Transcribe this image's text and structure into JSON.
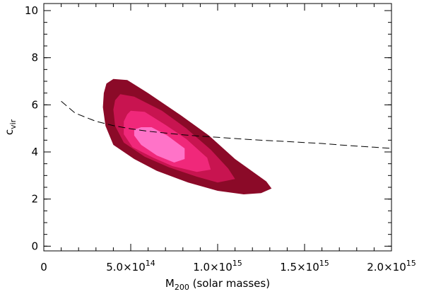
{
  "chart_data": {
    "type": "line",
    "xlabel": {
      "main": "M",
      "sub": "200",
      "rest": " (solar masses)"
    },
    "ylabel": {
      "main": "c",
      "sub": "vir"
    },
    "xlim": [
      0,
      2000000000000000.0
    ],
    "ylim": [
      -0.2,
      10.3
    ],
    "x_ticks": [
      {
        "value": 0,
        "mantissa": "0",
        "exp": ""
      },
      {
        "value": 500000000000000.0,
        "mantissa": "5.0×10",
        "exp": "14"
      },
      {
        "value": 1000000000000000.0,
        "mantissa": "1.0×10",
        "exp": "15"
      },
      {
        "value": 1500000000000000.0,
        "mantissa": "1.5×10",
        "exp": "15"
      },
      {
        "value": 2000000000000000.0,
        "mantissa": "2.0×10",
        "exp": "15"
      }
    ],
    "y_ticks": [
      0,
      2,
      4,
      6,
      8,
      10
    ],
    "series": [
      {
        "style": "dashed",
        "color": "#000000",
        "x": [
          100000000000000.0,
          180000000000000.0,
          300000000000000.0,
          400000000000000.0,
          500000000000000.0,
          600000000000000.0,
          700000000000000.0,
          800000000000000.0,
          900000000000000.0,
          1000000000000000.0,
          1100000000000000.0,
          1200000000000000.0,
          1300000000000000.0,
          1400000000000000.0,
          1500000000000000.0,
          1600000000000000.0,
          1700000000000000.0,
          1800000000000000.0,
          1900000000000000.0,
          2000000000000000.0
        ],
        "y": [
          6.15,
          5.65,
          5.3,
          5.12,
          4.98,
          4.88,
          4.8,
          4.73,
          4.67,
          4.62,
          4.57,
          4.52,
          4.48,
          4.44,
          4.4,
          4.36,
          4.3,
          4.25,
          4.2,
          4.15
        ]
      }
    ],
    "contours": [
      {
        "level": 1,
        "color": "#8b0a28",
        "x": [
          400000000000000.0,
          480000000000000.0,
          600000000000000.0,
          780000000000000.0,
          950000000000000.0,
          1100000000000000.0,
          1280000000000000.0,
          1310000000000000.0,
          1250000000000000.0,
          1150000000000000.0,
          1000000000000000.0,
          830000000000000.0,
          650000000000000.0,
          520000000000000.0,
          400000000000000.0,
          355000000000000.0,
          340000000000000.0,
          345000000000000.0,
          360000000000000.0
        ],
        "y": [
          7.1,
          7.05,
          6.5,
          5.6,
          4.7,
          3.7,
          2.75,
          2.45,
          2.25,
          2.2,
          2.35,
          2.7,
          3.2,
          3.7,
          4.3,
          5.1,
          5.9,
          6.5,
          6.9
        ]
      },
      {
        "level": 2,
        "color": "#c81450",
        "x": [
          440000000000000.0,
          520000000000000.0,
          680000000000000.0,
          820000000000000.0,
          960000000000000.0,
          1060000000000000.0,
          1100000000000000.0,
          1000000000000000.0,
          880000000000000.0,
          720000000000000.0,
          580000000000000.0,
          460000000000000.0,
          410000000000000.0,
          400000000000000.0,
          410000000000000.0
        ],
        "y": [
          6.45,
          6.35,
          5.75,
          5.0,
          4.1,
          3.3,
          2.85,
          2.7,
          2.95,
          3.35,
          3.8,
          4.4,
          5.1,
          5.8,
          6.2
        ]
      },
      {
        "level": 3,
        "color": "#f0287a",
        "x": [
          500000000000000.0,
          580000000000000.0,
          700000000000000.0,
          820000000000000.0,
          940000000000000.0,
          960000000000000.0,
          880000000000000.0,
          740000000000000.0,
          630000000000000.0,
          510000000000000.0,
          460000000000000.0,
          460000000000000.0,
          480000000000000.0
        ],
        "y": [
          5.75,
          5.7,
          5.15,
          4.55,
          3.75,
          3.25,
          3.15,
          3.4,
          3.75,
          4.2,
          4.75,
          5.3,
          5.6
        ]
      },
      {
        "level": 4,
        "color": "#ff73c8",
        "x": [
          560000000000000.0,
          620000000000000.0,
          710000000000000.0,
          810000000000000.0,
          810000000000000.0,
          750000000000000.0,
          650000000000000.0,
          560000000000000.0,
          520000000000000.0,
          520000000000000.0
        ],
        "y": [
          5.05,
          5.05,
          4.7,
          4.15,
          3.7,
          3.55,
          3.85,
          4.3,
          4.7,
          4.95
        ]
      }
    ]
  }
}
